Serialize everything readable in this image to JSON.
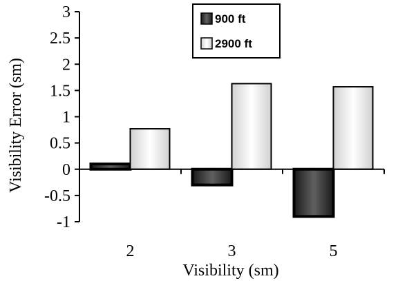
{
  "chart_data": {
    "type": "bar",
    "categories": [
      "2",
      "3",
      "5"
    ],
    "series": [
      {
        "name": "900 ft",
        "values": [
          0.1,
          -0.3,
          -0.9
        ]
      },
      {
        "name": "2900 ft",
        "values": [
          0.77,
          1.63,
          1.57
        ]
      }
    ],
    "xlabel": "Visibility (sm)",
    "ylabel": "Visibility Error (sm)",
    "ylim": [
      -1,
      3
    ],
    "yticks": [
      "3",
      "2.5",
      "2",
      "1.5",
      "1",
      "0.5",
      "0",
      "-0.5",
      "-1"
    ],
    "ytick_values": [
      3,
      2.5,
      2,
      1.5,
      1,
      0.5,
      0,
      -0.5,
      -1
    ],
    "grid": false,
    "legend": "top-center",
    "colors": {
      "900 ft": "#2a2a2a",
      "2900 ft": "#eeeeee"
    }
  }
}
